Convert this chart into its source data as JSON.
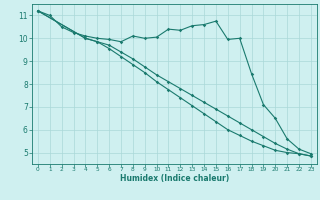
{
  "bg_color": "#cff0f0",
  "grid_color": "#aad8d8",
  "line_color": "#1a7a6e",
  "xlabel": "Humidex (Indice chaleur)",
  "ylim": [
    4.5,
    11.5
  ],
  "xlim": [
    -0.5,
    23.5
  ],
  "yticks": [
    5,
    6,
    7,
    8,
    9,
    10,
    11
  ],
  "xticks": [
    0,
    1,
    2,
    3,
    4,
    5,
    6,
    7,
    8,
    9,
    10,
    11,
    12,
    13,
    14,
    15,
    16,
    17,
    18,
    19,
    20,
    21,
    22,
    23
  ],
  "line1_x": [
    0,
    1,
    2,
    3,
    4,
    5,
    6,
    7,
    8,
    9,
    10,
    11,
    12,
    13,
    14,
    15,
    16,
    17,
    18,
    19,
    20,
    21,
    22,
    23
  ],
  "line1_y": [
    11.2,
    11.0,
    10.5,
    10.25,
    10.1,
    10.0,
    9.95,
    9.85,
    10.1,
    10.0,
    10.05,
    10.4,
    10.35,
    10.55,
    10.6,
    10.75,
    9.95,
    10.0,
    8.45,
    7.1,
    6.5,
    5.6,
    5.15,
    4.95
  ],
  "line2_x": [
    0,
    4,
    5,
    6,
    7,
    8,
    9,
    10,
    11,
    12,
    13,
    14,
    15,
    16,
    17,
    18,
    19,
    20,
    21,
    22,
    23
  ],
  "line2_y": [
    11.2,
    10.0,
    9.85,
    9.7,
    9.4,
    9.1,
    8.75,
    8.4,
    8.1,
    7.8,
    7.5,
    7.2,
    6.9,
    6.6,
    6.3,
    6.0,
    5.7,
    5.4,
    5.15,
    4.95,
    4.85
  ],
  "line3_x": [
    0,
    4,
    5,
    6,
    7,
    8,
    9,
    10,
    11,
    12,
    13,
    14,
    15,
    16,
    17,
    18,
    19,
    20,
    21,
    22,
    23
  ],
  "line3_y": [
    11.2,
    10.0,
    9.85,
    9.55,
    9.2,
    8.85,
    8.5,
    8.1,
    7.75,
    7.4,
    7.05,
    6.7,
    6.35,
    6.0,
    5.75,
    5.5,
    5.3,
    5.1,
    5.0,
    4.95,
    4.85
  ]
}
